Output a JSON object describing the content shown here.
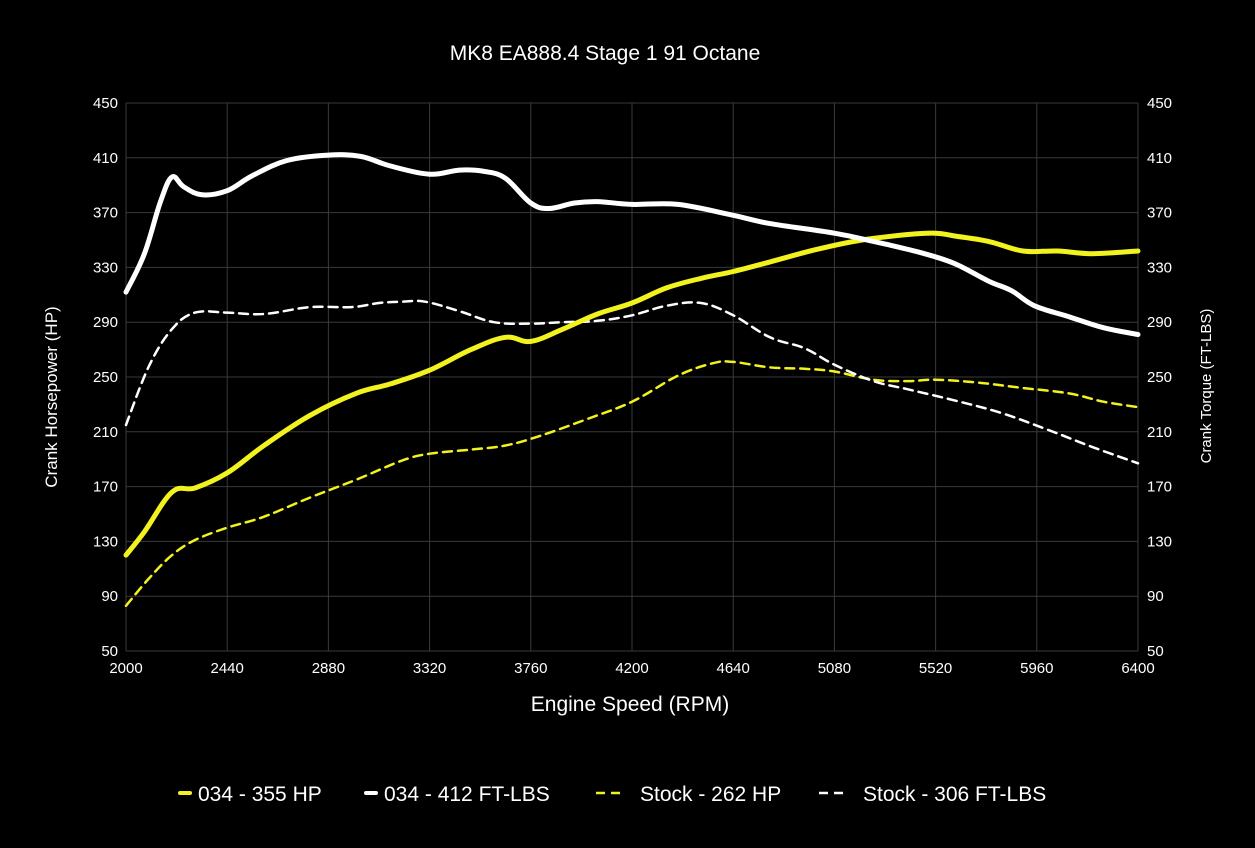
{
  "chart_data": {
    "type": "line",
    "title": "MK8 EA888.4 Stage 1 91 Octane",
    "xlabel": "Engine Speed (RPM)",
    "ylabel_left": "Crank Horsepower (HP)",
    "ylabel_right": "Crank Torque (FT-LBS)",
    "xlim": [
      2000,
      6400
    ],
    "ylim": [
      50,
      450
    ],
    "xticks": [
      2000,
      2440,
      2880,
      3320,
      3760,
      4200,
      4640,
      5080,
      5520,
      5960,
      6400
    ],
    "yticks": [
      50,
      90,
      130,
      170,
      210,
      250,
      290,
      330,
      370,
      410,
      450
    ],
    "grid": true,
    "legend_position": "bottom",
    "series": [
      {
        "name": "034 - 355 HP",
        "color": "#f2f21e",
        "style": "solid",
        "x": [
          2000,
          2080,
          2200,
          2300,
          2440,
          2600,
          2800,
          3000,
          3150,
          3320,
          3500,
          3650,
          3760,
          3900,
          4050,
          4200,
          4350,
          4500,
          4640,
          4800,
          5000,
          5200,
          5400,
          5520,
          5600,
          5750,
          5900,
          6050,
          6200,
          6400
        ],
        "y": [
          120,
          137,
          166,
          169,
          180,
          200,
          222,
          238,
          245,
          255,
          270,
          279,
          276,
          285,
          296,
          304,
          315,
          322,
          327,
          334,
          343,
          350,
          354,
          355,
          353,
          349,
          342,
          342,
          340,
          342
        ]
      },
      {
        "name": "034 - 412 FT-LBS",
        "color": "#ffffff",
        "style": "solid",
        "x": [
          2000,
          2080,
          2150,
          2200,
          2250,
          2330,
          2440,
          2550,
          2700,
          2880,
          3020,
          3150,
          3320,
          3450,
          3560,
          3650,
          3760,
          3840,
          3950,
          4050,
          4200,
          4400,
          4640,
          4800,
          5080,
          5250,
          5450,
          5600,
          5750,
          5850,
          5950,
          6100,
          6250,
          6400
        ],
        "y": [
          312,
          340,
          378,
          396,
          389,
          383,
          386,
          397,
          408,
          412,
          411,
          404,
          398,
          401,
          400,
          395,
          377,
          373,
          377,
          378,
          376,
          376,
          368,
          362,
          355,
          349,
          341,
          333,
          320,
          313,
          302,
          294,
          286,
          281
        ]
      },
      {
        "name": "Stock - 262 HP",
        "color": "#f2f21e",
        "style": "dashed",
        "x": [
          2000,
          2100,
          2200,
          2300,
          2440,
          2600,
          2800,
          3000,
          3200,
          3320,
          3500,
          3650,
          3800,
          4000,
          4200,
          4400,
          4550,
          4640,
          4800,
          4950,
          5080,
          5250,
          5400,
          5520,
          5700,
          5900,
          6100,
          6250,
          6400
        ],
        "y": [
          83,
          103,
          120,
          131,
          140,
          148,
          162,
          175,
          189,
          194,
          197,
          200,
          207,
          219,
          232,
          251,
          260,
          261,
          257,
          256,
          254,
          248,
          247,
          248,
          246,
          242,
          238,
          232,
          228
        ]
      },
      {
        "name": "Stock - 306 FT-LBS",
        "color": "#ffffff",
        "style": "dashed",
        "x": [
          2000,
          2100,
          2200,
          2300,
          2440,
          2600,
          2800,
          2980,
          3100,
          3200,
          3300,
          3450,
          3600,
          3760,
          3900,
          4050,
          4200,
          4350,
          4500,
          4640,
          4800,
          4950,
          5080,
          5250,
          5400,
          5600,
          5800,
          6000,
          6200,
          6400
        ],
        "y": [
          215,
          258,
          285,
          297,
          297,
          296,
          301,
          301,
          304,
          305,
          305,
          298,
          290,
          289,
          290,
          291,
          295,
          302,
          304,
          295,
          279,
          271,
          259,
          247,
          241,
          233,
          224,
          212,
          199,
          187
        ]
      }
    ]
  }
}
